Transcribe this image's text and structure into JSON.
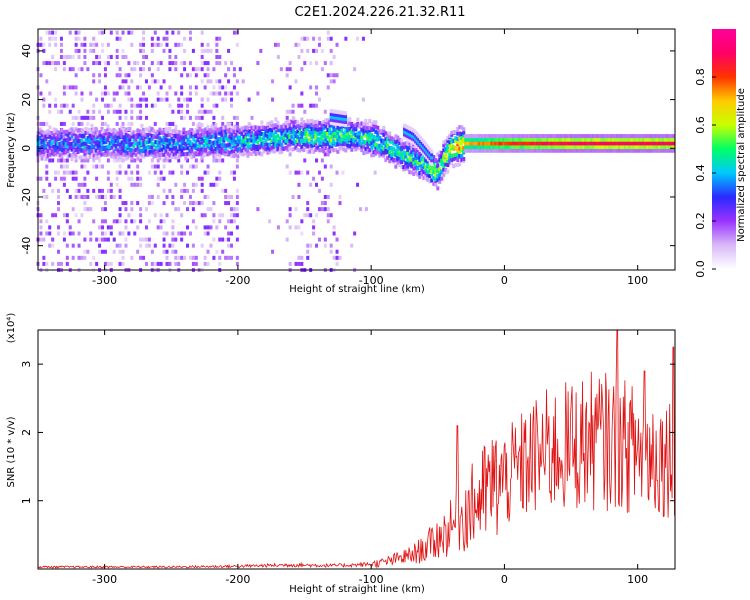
{
  "title": "C2E1.2024.226.21.32.R11",
  "chart_data": [
    {
      "type": "heatmap",
      "xlabel": "Height of straight line (km)",
      "ylabel": "Frequency (Hz)",
      "xlim": [
        -350,
        128
      ],
      "ylim": [
        -50,
        49
      ],
      "xticks": [
        -300,
        -200,
        -100,
        0,
        100
      ],
      "yticks": [
        -40,
        -20,
        0,
        20,
        40
      ],
      "grid": false,
      "colorbar": {
        "label": "Normalized spectral amplitude",
        "range": [
          0,
          1
        ],
        "ticks": [
          0.0,
          0.2,
          0.4,
          0.6,
          0.8
        ],
        "colormap": [
          "#ffffff",
          "#d8b8f8",
          "#9933ff",
          "#2a2aff",
          "#00c8ff",
          "#00ff64",
          "#c8ff00",
          "#ffcc00",
          "#ff3300",
          "#ff0066",
          "#ff0099"
        ]
      },
      "ridge": {
        "description_points_x": [
          -350,
          -250,
          -200,
          -160,
          -140,
          -125,
          -110,
          -95,
          -85,
          -75,
          -60,
          -50,
          -45,
          -40,
          -30,
          0,
          50,
          100,
          128
        ],
        "frequency_hz": [
          2,
          2,
          3,
          5,
          5,
          5,
          5,
          3,
          0,
          -3,
          -6,
          -10,
          -4,
          0,
          2,
          2,
          2,
          2,
          2
        ],
        "amplitude": [
          0.3,
          0.3,
          0.35,
          0.4,
          0.45,
          0.45,
          0.4,
          0.4,
          0.4,
          0.4,
          0.4,
          0.45,
          0.5,
          0.6,
          0.7,
          0.8,
          0.9,
          0.9,
          0.9
        ]
      },
      "secondary_ridges": [
        {
          "x": [
            -130,
            -118
          ],
          "frequency_hz": [
            13,
            12
          ],
          "amplitude": 0.4
        },
        {
          "x": [
            -75,
            -68,
            -60,
            -54
          ],
          "frequency_hz": [
            7,
            5,
            0,
            -4
          ],
          "amplitude": 0.4
        }
      ]
    },
    {
      "type": "line",
      "xlabel": "Height of straight line (km)",
      "ylabel": "SNR (10 * v/v)",
      "y_multiplier": "(x10⁴)",
      "xlim": [
        -350,
        128
      ],
      "ylim": [
        0,
        3.5
      ],
      "xticks": [
        -300,
        -200,
        -100,
        0,
        100
      ],
      "yticks": [
        1,
        2,
        3
      ],
      "grid": false,
      "series": [
        {
          "color": "#e01010",
          "x": [
            -350,
            -300,
            -250,
            -200,
            -160,
            -130,
            -110,
            -100,
            -90,
            -80,
            -70,
            -60,
            -50,
            -40,
            -30,
            -20,
            -10,
            0,
            10,
            20,
            30,
            40,
            50,
            60,
            70,
            80,
            90,
            100,
            110,
            120,
            128
          ],
          "y": [
            0.03,
            0.03,
            0.03,
            0.04,
            0.06,
            0.05,
            0.06,
            0.07,
            0.1,
            0.15,
            0.2,
            0.3,
            0.45,
            0.6,
            0.8,
            1.0,
            1.2,
            1.3,
            1.45,
            1.6,
            1.7,
            1.75,
            1.8,
            1.85,
            1.9,
            1.85,
            1.8,
            1.75,
            1.7,
            1.65,
            1.7
          ]
        }
      ],
      "spikes": [
        {
          "x": -35,
          "y": 2.1
        },
        {
          "x": 85,
          "y": 3.5
        },
        {
          "x": 105,
          "y": 2.9
        },
        {
          "x": 127,
          "y": 3.25
        }
      ]
    }
  ]
}
